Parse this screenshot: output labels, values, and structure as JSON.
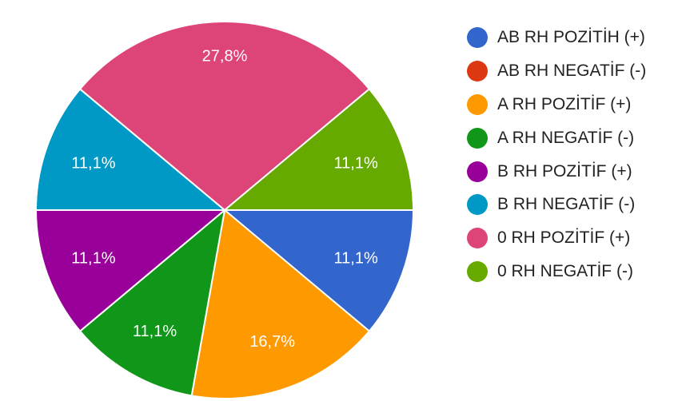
{
  "chart_data": {
    "type": "pie",
    "unit": "%",
    "legend_position": "right",
    "slices": [
      {
        "label": "AB RH POZİTİH (+)",
        "value": 11.1,
        "display": "11,1%",
        "color": "#3366cc"
      },
      {
        "label": "AB RH NEGATİF (-)",
        "value": 0,
        "display": "",
        "color": "#dc3912"
      },
      {
        "label": "A RH POZİTİF (+)",
        "value": 16.7,
        "display": "16,7%",
        "color": "#ff9900"
      },
      {
        "label": "A RH NEGATİF (-)",
        "value": 11.1,
        "display": "11,1%",
        "color": "#109618"
      },
      {
        "label": "B RH POZİTİF (+)",
        "value": 11.1,
        "display": "11,1%",
        "color": "#990099"
      },
      {
        "label": "B RH NEGATİF (-)",
        "value": 11.1,
        "display": "11,1%",
        "color": "#0099c6"
      },
      {
        "label": "0 RH POZİTİF (+)",
        "value": 27.8,
        "display": "27,8%",
        "color": "#dd4477"
      },
      {
        "label": "0 RH NEGATİF (-)",
        "value": 11.1,
        "display": "11,1%",
        "color": "#66aa00"
      }
    ]
  }
}
